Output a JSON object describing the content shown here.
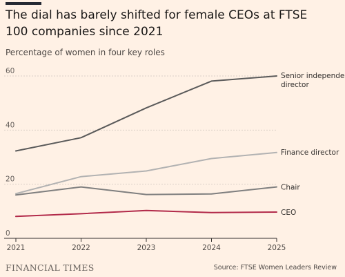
{
  "title": "The dial has barely shifted for female CEOs at FTSE 100 companies since 2021",
  "subtitle": "Percentage of women in four key roles",
  "source": "Source: FTSE Women Leaders Review",
  "brand": "FINANCIAL TIMES",
  "colors": {
    "background": "#fff1e5",
    "senior": "#5a5a5a",
    "finance": "#b2b2b2",
    "chair": "#7f7f7f",
    "ceo": "#b22a4a",
    "grid": "#d9cfc6",
    "axis": "#33302e"
  },
  "chart_data": {
    "type": "line",
    "x": [
      "2021",
      "2022",
      "2023",
      "2024",
      "2025"
    ],
    "ylim": [
      0,
      60
    ],
    "yticks": [
      "0",
      "20",
      "40",
      "60"
    ],
    "grid": true,
    "series": [
      {
        "name": "Senior independent director",
        "values": [
          32.3,
          37.2,
          48.2,
          58.1,
          60.0
        ],
        "color": "#5a5a5a"
      },
      {
        "name": "Finance director",
        "values": [
          16.5,
          22.8,
          24.9,
          29.5,
          31.7
        ],
        "color": "#b2b2b2"
      },
      {
        "name": "Chair",
        "values": [
          16.0,
          19.0,
          16.2,
          16.4,
          19.0
        ],
        "color": "#7f7f7f"
      },
      {
        "name": "CEO",
        "values": [
          8.1,
          9.1,
          10.3,
          9.5,
          9.7
        ],
        "color": "#b22a4a"
      }
    ]
  }
}
